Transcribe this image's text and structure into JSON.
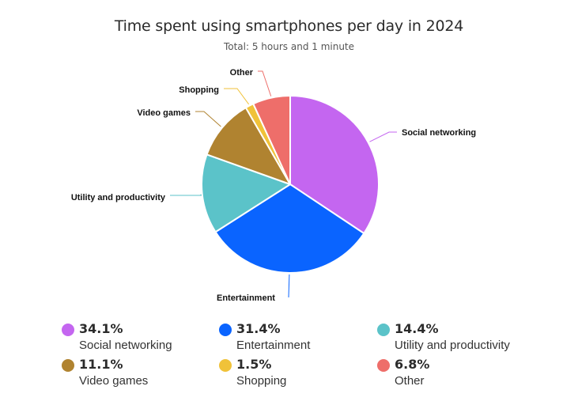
{
  "chart_data": {
    "type": "pie",
    "title": "Time spent using smartphones per day in 2024",
    "subtitle": "Total: 5 hours and 1 minute",
    "slices": [
      {
        "label": "Social networking",
        "value": 34.1,
        "pct_text": "34.1%",
        "color": "#c466f0"
      },
      {
        "label": "Entertainment",
        "value": 31.4,
        "pct_text": "31.4%",
        "color": "#0a64ff"
      },
      {
        "label": "Utility and productivity",
        "value": 14.4,
        "pct_text": "14.4%",
        "color": "#5bc3c9"
      },
      {
        "label": "Video games",
        "value": 11.1,
        "pct_text": "11.1%",
        "color": "#b08330"
      },
      {
        "label": "Shopping",
        "value": 1.5,
        "pct_text": "1.5%",
        "color": "#f0c239"
      },
      {
        "label": "Other",
        "value": 6.8,
        "pct_text": "6.8%",
        "color": "#ee6e6a"
      }
    ],
    "legend_position": "bottom"
  }
}
